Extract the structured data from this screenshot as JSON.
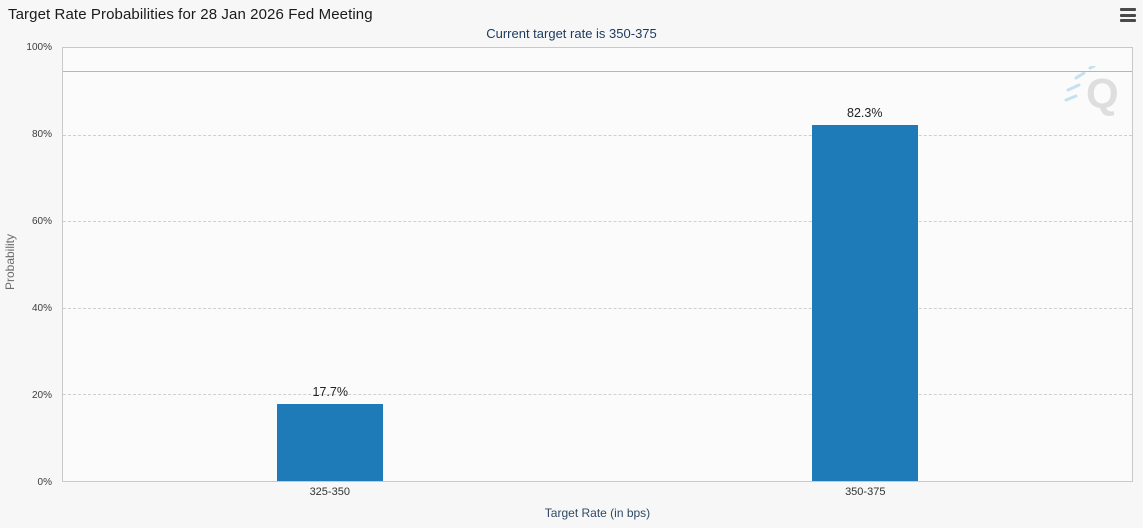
{
  "header": {
    "title": "Target Rate Probabilities for 28 Jan 2026 Fed Meeting",
    "subtitle": "Current target rate is 350-375"
  },
  "menu": {
    "icon": "hamburger-icon"
  },
  "watermark": {
    "letter": "Q"
  },
  "colors": {
    "bar": "#1f7ab8",
    "background": "#f7f7f7",
    "subtitle": "#1b3a5e",
    "gridline": "#cfcfcf"
  },
  "chart_data": {
    "type": "bar",
    "title": "Target Rate Probabilities for 28 Jan 2026 Fed Meeting",
    "subtitle": "Current target rate is 350-375",
    "categories": [
      "325-350",
      "350-375"
    ],
    "values": [
      17.7,
      82.3
    ],
    "value_labels": [
      "17.7%",
      "82.3%"
    ],
    "xlabel": "Target Rate (in bps)",
    "ylabel": "Probability",
    "ylim": [
      0,
      100
    ],
    "yticks": [
      0,
      20,
      40,
      60,
      80,
      100
    ],
    "ytick_labels": [
      "0%",
      "20%",
      "40%",
      "60%",
      "80%",
      "100%"
    ],
    "grid": "horizontal-dashed",
    "reference_line": 94.7,
    "bar_color": "#1f7ab8",
    "legend": "none"
  }
}
